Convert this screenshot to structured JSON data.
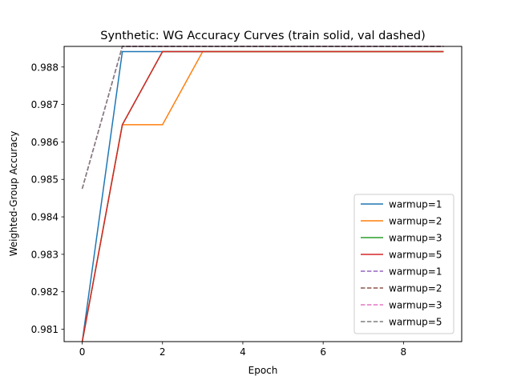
{
  "chart_data": {
    "type": "line",
    "title": "Synthetic: WG Accuracy Curves (train solid, val dashed)",
    "xlabel": "Epoch",
    "ylabel": "Weighted-Group Accuracy",
    "xlim": [
      -0.45,
      9.45
    ],
    "ylim": [
      0.98067,
      0.98855
    ],
    "xticks": [
      0,
      2,
      4,
      6,
      8
    ],
    "yticks": [
      0.981,
      0.982,
      0.983,
      0.984,
      0.985,
      0.986,
      0.987,
      0.988
    ],
    "ytick_labels": [
      "0.981",
      "0.982",
      "0.983",
      "0.984",
      "0.985",
      "0.986",
      "0.987",
      "0.988"
    ],
    "grid": false,
    "legend_position": "lower right",
    "x": [
      0,
      1,
      2,
      3,
      4,
      5,
      6,
      7,
      8,
      9
    ],
    "series": [
      {
        "name": "warmup=1",
        "style": "solid",
        "color": "#1f77b4",
        "values": [
          0.98066,
          0.98841,
          0.98841,
          0.98841,
          0.98841,
          0.98841,
          0.98841,
          0.98841,
          0.98841,
          0.98841
        ]
      },
      {
        "name": "warmup=2",
        "style": "solid",
        "color": "#ff7f0e",
        "values": [
          0.98066,
          0.98646,
          0.98646,
          0.98841,
          0.98841,
          0.98841,
          0.98841,
          0.98841,
          0.98841,
          0.98841
        ]
      },
      {
        "name": "warmup=3",
        "style": "solid",
        "color": "#2ca02c",
        "values": [
          0.98066,
          0.98646,
          0.98841,
          0.98841,
          0.98841,
          0.98841,
          0.98841,
          0.98841,
          0.98841,
          0.98841
        ]
      },
      {
        "name": "warmup=5",
        "style": "solid",
        "color": "#d62728",
        "values": [
          0.98066,
          0.98646,
          0.98841,
          0.98841,
          0.98841,
          0.98841,
          0.98841,
          0.98841,
          0.98841,
          0.98841
        ]
      },
      {
        "name": "warmup=1",
        "style": "dashed",
        "color": "#9467bd",
        "values": [
          0.98475,
          0.98855,
          0.98855,
          0.98855,
          0.98855,
          0.98855,
          0.98855,
          0.98855,
          0.98855,
          0.98855
        ]
      },
      {
        "name": "warmup=2",
        "style": "dashed",
        "color": "#8c564b",
        "values": [
          0.98475,
          0.98855,
          0.98855,
          0.98855,
          0.98855,
          0.98855,
          0.98855,
          0.98855,
          0.98855,
          0.98855
        ]
      },
      {
        "name": "warmup=3",
        "style": "dashed",
        "color": "#e377c2",
        "values": [
          0.98475,
          0.98855,
          0.98855,
          0.98855,
          0.98855,
          0.98855,
          0.98855,
          0.98855,
          0.98855,
          0.98855
        ]
      },
      {
        "name": "warmup=5",
        "style": "dashed",
        "color": "#7f7f7f",
        "values": [
          0.98475,
          0.98855,
          0.98855,
          0.98855,
          0.98855,
          0.98855,
          0.98855,
          0.98855,
          0.98855,
          0.98855
        ]
      }
    ]
  }
}
